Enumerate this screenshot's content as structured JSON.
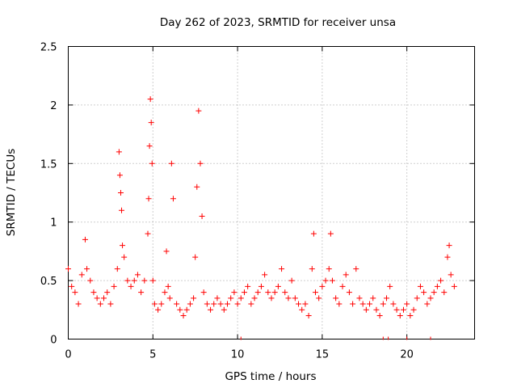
{
  "chart_data": {
    "type": "scatter",
    "title": "Day 262 of 2023, SRMTID for receiver unsa",
    "xlabel": "GPS time / hours",
    "ylabel": "SRMTID / TECUs",
    "xlim": [
      0,
      24
    ],
    "ylim": [
      0,
      2.5
    ],
    "x_ticks": [
      0,
      5,
      10,
      15,
      20
    ],
    "x_tick_labels": [
      "0",
      "5",
      "10",
      "15",
      "20"
    ],
    "y_ticks": [
      0,
      0.5,
      1,
      1.5,
      2,
      2.5
    ],
    "y_tick_labels": [
      "0",
      "0.5",
      "1",
      "1.5",
      "2",
      "2.5"
    ],
    "grid": true,
    "legend": "none",
    "marker": "plus",
    "series": [
      {
        "name": "SRMTID",
        "color": "#ff0000",
        "x": [
          0.0,
          0.2,
          0.4,
          0.6,
          0.8,
          1.0,
          1.1,
          1.3,
          1.5,
          1.7,
          1.9,
          2.1,
          2.3,
          2.5,
          2.7,
          2.9,
          3.0,
          3.05,
          3.1,
          3.15,
          3.2,
          3.3,
          3.5,
          3.7,
          3.9,
          4.1,
          4.3,
          4.5,
          4.7,
          4.75,
          4.8,
          4.85,
          4.9,
          4.95,
          5.0,
          5.1,
          5.3,
          5.5,
          5.7,
          5.8,
          5.9,
          6.0,
          6.1,
          6.2,
          6.4,
          6.6,
          6.8,
          7.0,
          7.2,
          7.4,
          7.5,
          7.6,
          7.7,
          7.8,
          7.9,
          8.0,
          8.2,
          8.4,
          8.6,
          8.8,
          9.0,
          9.2,
          9.4,
          9.6,
          9.8,
          10.0,
          10.2,
          10.4,
          10.6,
          10.8,
          11.0,
          11.2,
          11.4,
          11.6,
          11.8,
          12.0,
          12.2,
          12.4,
          12.6,
          12.8,
          13.0,
          13.2,
          13.4,
          13.6,
          13.8,
          14.0,
          14.2,
          14.4,
          14.5,
          14.6,
          14.8,
          15.0,
          15.2,
          15.4,
          15.5,
          15.6,
          15.8,
          16.0,
          16.2,
          16.4,
          16.6,
          16.8,
          17.0,
          17.2,
          17.4,
          17.6,
          17.8,
          18.0,
          18.2,
          18.4,
          18.6,
          18.8,
          19.0,
          19.2,
          19.4,
          19.6,
          19.8,
          20.0,
          20.2,
          20.4,
          20.6,
          20.8,
          21.0,
          21.2,
          21.4,
          21.6,
          21.8,
          22.0,
          22.2,
          22.4,
          22.5,
          22.6,
          22.8
        ],
        "y": [
          0.6,
          0.45,
          0.4,
          0.3,
          0.55,
          0.85,
          0.6,
          0.5,
          0.4,
          0.35,
          0.3,
          0.35,
          0.4,
          0.3,
          0.45,
          0.6,
          1.6,
          1.4,
          1.25,
          1.1,
          0.8,
          0.7,
          0.5,
          0.45,
          0.5,
          0.55,
          0.4,
          0.5,
          0.9,
          1.2,
          1.65,
          2.05,
          1.85,
          1.5,
          0.5,
          0.3,
          0.25,
          0.3,
          0.4,
          0.75,
          0.45,
          0.35,
          1.5,
          1.2,
          0.3,
          0.25,
          0.2,
          0.25,
          0.3,
          0.35,
          0.7,
          1.3,
          1.95,
          1.5,
          1.05,
          0.4,
          0.3,
          0.25,
          0.3,
          0.35,
          0.3,
          0.25,
          0.3,
          0.35,
          0.4,
          0.3,
          0.35,
          0.4,
          0.45,
          0.3,
          0.35,
          0.4,
          0.45,
          0.55,
          0.4,
          0.35,
          0.4,
          0.45,
          0.6,
          0.4,
          0.35,
          0.5,
          0.35,
          0.3,
          0.25,
          0.3,
          0.2,
          0.6,
          0.9,
          0.4,
          0.35,
          0.45,
          0.5,
          0.6,
          0.9,
          0.5,
          0.35,
          0.3,
          0.45,
          0.55,
          0.4,
          0.3,
          0.6,
          0.35,
          0.3,
          0.25,
          0.3,
          0.35,
          0.25,
          0.2,
          0.3,
          0.35,
          0.45,
          0.3,
          0.25,
          0.2,
          0.25,
          0.3,
          0.2,
          0.25,
          0.35,
          0.45,
          0.4,
          0.3,
          0.35,
          0.4,
          0.45,
          0.5,
          0.4,
          0.7,
          0.8,
          0.55,
          0.45
        ]
      }
    ],
    "bottom_markers_x": [
      10.2,
      18.6,
      18.9,
      20.0,
      21.4
    ]
  }
}
